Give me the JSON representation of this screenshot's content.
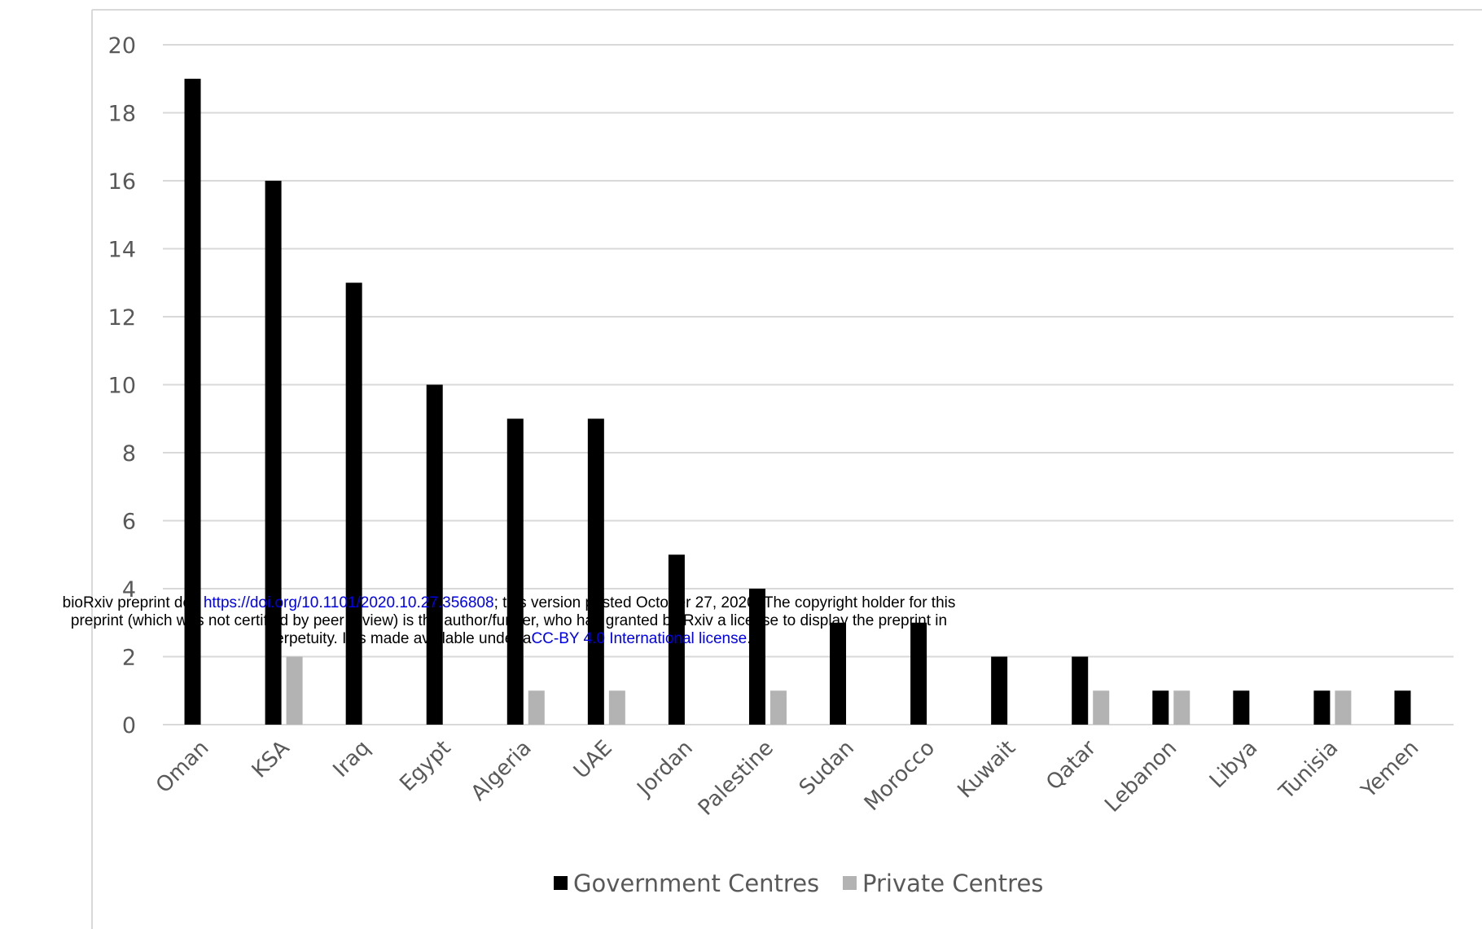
{
  "colors": {
    "government": "#000000",
    "private": "#b3b3b3",
    "grid": "#d9d9d9",
    "axis_text": "#595959",
    "link": "#0000ee"
  },
  "watermark": {
    "line1_prefix": "bioRxiv preprint doi: ",
    "doi_link": "https://doi.org/10.1101/2020.10.27.356808",
    "line1_suffix": "; this version posted October 27, 2020. The copyright holder for this",
    "line2": "preprint (which was not certified by peer review) is the author/funder, who has granted bioRxiv a license to display the preprint in",
    "line3_prefix": "perpetuity. It is made available under a",
    "license_link": "CC-BY 4.0 International license",
    "line3_suffix": "."
  },
  "chart_data": {
    "type": "bar",
    "title": "",
    "xlabel": "",
    "ylabel": "",
    "ylim": [
      0,
      20
    ],
    "yticks": [
      0,
      2,
      4,
      6,
      8,
      10,
      12,
      14,
      16,
      18,
      20
    ],
    "grid": true,
    "legend_position": "bottom",
    "categories": [
      "Oman",
      "KSA",
      "Iraq",
      "Egypt",
      "Algeria",
      "UAE",
      "Jordan",
      "Palestine",
      "Sudan",
      "Morocco",
      "Kuwait",
      "Qatar",
      "Lebanon",
      "Libya",
      "Tunisia",
      "Yemen"
    ],
    "series": [
      {
        "name": "Government Centres",
        "color": "#000000",
        "values": [
          19,
          16,
          13,
          10,
          9,
          9,
          5,
          4,
          3,
          3,
          2,
          2,
          1,
          1,
          1,
          1
        ]
      },
      {
        "name": "Private Centres",
        "color": "#b3b3b3",
        "values": [
          0,
          2,
          0,
          0,
          1,
          1,
          0,
          1,
          0,
          0,
          0,
          1,
          1,
          0,
          1,
          0
        ]
      }
    ]
  }
}
